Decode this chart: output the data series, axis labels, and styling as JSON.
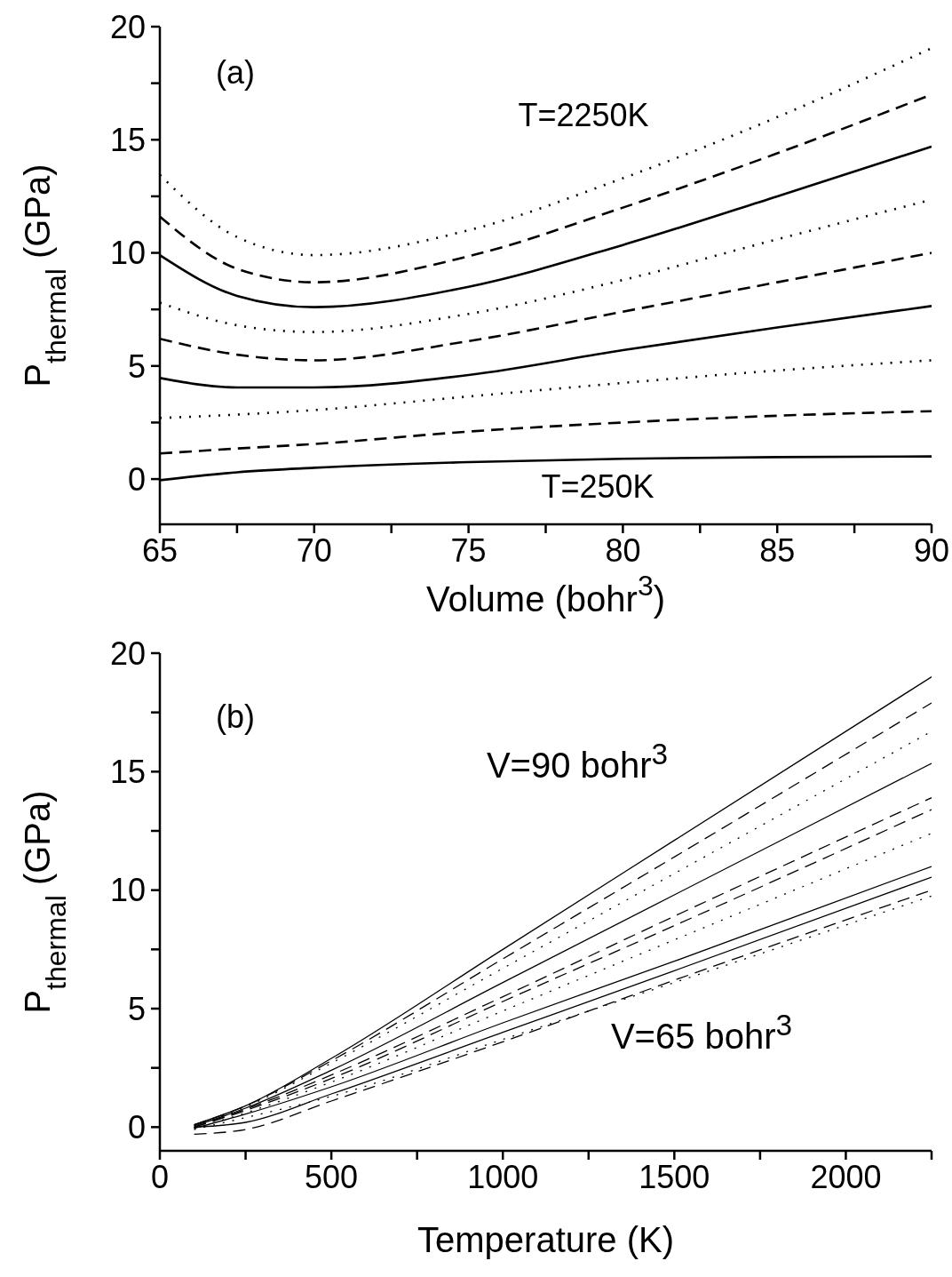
{
  "chart_data": [
    {
      "type": "line",
      "xlabel": "Volume (bohr$^{3}$)",
      "ylabel": "P$_{thermal}$ (GPa)",
      "x": [
        65,
        67.5,
        70,
        75,
        80,
        85,
        90
      ],
      "xlim": [
        65,
        90
      ],
      "xticks": [
        65,
        {
          "value": 67.5,
          "label": null
        },
        70,
        {
          "value": 72.5,
          "label": null
        },
        75,
        {
          "value": 77.5,
          "label": null
        },
        80,
        {
          "value": 82.5,
          "label": null
        },
        85,
        {
          "value": 87.5,
          "label": null
        },
        90
      ],
      "ylim": [
        -2,
        20
      ],
      "yticks": [
        0,
        {
          "value": 2.5,
          "label": null
        },
        5,
        {
          "value": 7.5,
          "label": null
        },
        10,
        {
          "value": 12.5,
          "label": null
        },
        15,
        {
          "value": 17.5,
          "label": null
        },
        20
      ],
      "annotations": [
        "(a)",
        "T=2250K",
        "T=250K"
      ],
      "series": [
        {
          "color": "#000000",
          "line_style": "solid",
          "values": [
            -0.05,
            0.3,
            0.5,
            0.75,
            0.9,
            0.97,
            1.0
          ]
        },
        {
          "color": "#000000",
          "line_style": "dashed",
          "values": [
            1.13,
            1.35,
            1.55,
            2.1,
            2.5,
            2.8,
            3.0
          ]
        },
        {
          "color": "#000000",
          "line_style": "dotted",
          "values": [
            2.7,
            2.85,
            3.05,
            3.65,
            4.25,
            4.8,
            5.25
          ]
        },
        {
          "color": "#000000",
          "line_style": "solid",
          "values": [
            4.47,
            4.05,
            4.05,
            4.6,
            5.7,
            6.7,
            7.65
          ]
        },
        {
          "color": "#000000",
          "line_style": "dashed",
          "values": [
            6.2,
            5.5,
            5.25,
            6.1,
            7.4,
            8.7,
            10.0
          ]
        },
        {
          "color": "#000000",
          "line_style": "dotted",
          "values": [
            7.8,
            6.8,
            6.5,
            7.3,
            8.8,
            10.6,
            12.35
          ]
        },
        {
          "color": "#000000",
          "line_style": "solid",
          "values": [
            9.9,
            8.1,
            7.6,
            8.5,
            10.35,
            12.5,
            14.7
          ]
        },
        {
          "color": "#000000",
          "line_style": "dashed",
          "values": [
            11.6,
            9.3,
            8.7,
            9.85,
            12.0,
            14.4,
            17.0
          ]
        },
        {
          "color": "#000000",
          "line_style": "dotted",
          "values": [
            13.45,
            10.7,
            9.9,
            11.0,
            13.3,
            16.0,
            19.05
          ]
        }
      ]
    },
    {
      "type": "line",
      "xlabel": "Temperature (K)",
      "ylabel": "P$_{thermal}$ (GPa)",
      "x": [
        100,
        250,
        500,
        1000,
        1500,
        2250
      ],
      "xlim": [
        0,
        2250
      ],
      "xticks": [
        0,
        {
          "value": 250,
          "label": null
        },
        500,
        {
          "value": 750,
          "label": null
        },
        1000,
        {
          "value": 1250,
          "label": null
        },
        1500,
        {
          "value": 1750,
          "label": null
        },
        2000,
        {
          "value": 2250,
          "label": null
        }
      ],
      "ylim": [
        -1,
        20
      ],
      "yticks": [
        0,
        {
          "value": 2.5,
          "label": null
        },
        5,
        {
          "value": 7.5,
          "label": null
        },
        10,
        {
          "value": 12.5,
          "label": null
        },
        15,
        {
          "value": 17.5,
          "label": null
        },
        20
      ],
      "annotations": [
        "(b)",
        "V=90 bohr$^{3}$",
        "V=65 bohr$^{3}$"
      ],
      "series": [
        {
          "color": "#000000",
          "line_style": "solid",
          "values": [
            0.1,
            0.9,
            2.9,
            7.5,
            12.1,
            19.0
          ]
        },
        {
          "color": "#000000",
          "line_style": "dashed",
          "values": [
            0.1,
            0.9,
            2.8,
            7.1,
            11.4,
            17.9
          ]
        },
        {
          "color": "#000000",
          "line_style": "dotted",
          "values": [
            0.05,
            0.85,
            2.7,
            6.7,
            10.7,
            16.7
          ]
        },
        {
          "color": "#000000",
          "line_style": "solid",
          "values": [
            0.05,
            0.8,
            2.4,
            6.1,
            9.8,
            15.35
          ]
        },
        {
          "color": "#000000",
          "line_style": "dashed",
          "values": [
            0.0,
            0.75,
            2.2,
            5.5,
            8.9,
            13.9
          ]
        },
        {
          "color": "#000000",
          "line_style": "dashed",
          "values": [
            0.0,
            0.7,
            2.05,
            5.3,
            8.5,
            13.4
          ]
        },
        {
          "color": "#000000",
          "line_style": "dotted",
          "values": [
            -0.05,
            0.6,
            1.9,
            4.9,
            7.9,
            12.4
          ]
        },
        {
          "color": "#000000",
          "line_style": "solid",
          "values": [
            -0.05,
            0.55,
            1.7,
            4.4,
            7.0,
            11.0
          ]
        },
        {
          "color": "#000000",
          "line_style": "solid",
          "values": [
            0.0,
            0.2,
            1.4,
            4.0,
            6.6,
            10.55
          ]
        },
        {
          "color": "#000000",
          "line_style": "dashed",
          "values": [
            -0.3,
            -0.1,
            1.1,
            3.6,
            6.2,
            10.0
          ]
        },
        {
          "color": "#000000",
          "line_style": "dotted",
          "values": [
            -0.1,
            0.4,
            1.3,
            3.7,
            6.1,
            9.75
          ]
        }
      ]
    }
  ]
}
